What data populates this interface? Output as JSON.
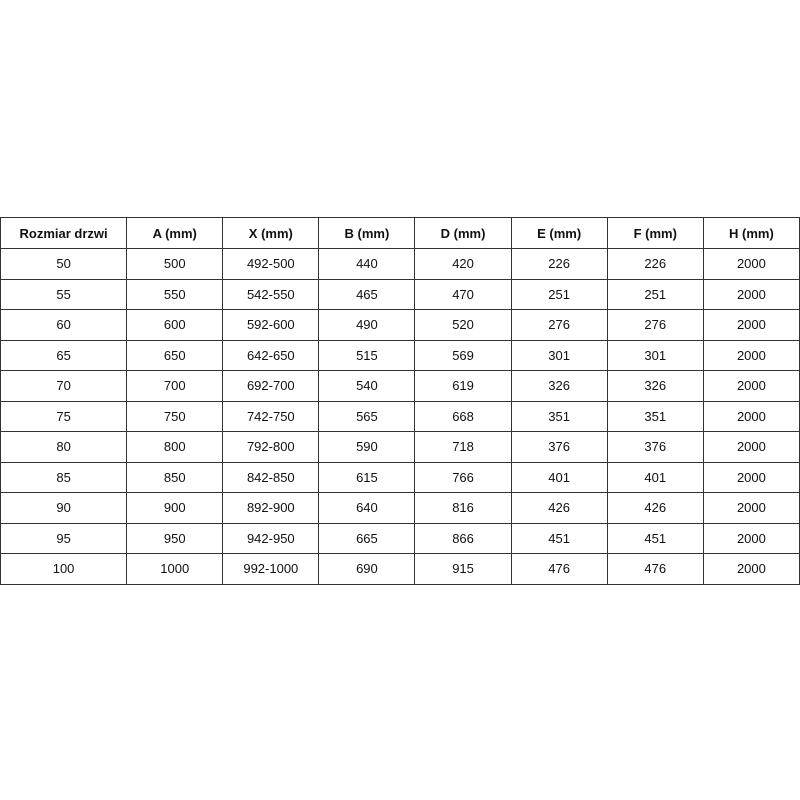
{
  "table": {
    "headers": [
      "Rozmiar drzwi",
      "A (mm)",
      "X (mm)",
      "B (mm)",
      "D (mm)",
      "E (mm)",
      "F (mm)",
      "H (mm)"
    ],
    "rows": [
      [
        "50",
        "500",
        "492-500",
        "440",
        "420",
        "226",
        "226",
        "2000"
      ],
      [
        "55",
        "550",
        "542-550",
        "465",
        "470",
        "251",
        "251",
        "2000"
      ],
      [
        "60",
        "600",
        "592-600",
        "490",
        "520",
        "276",
        "276",
        "2000"
      ],
      [
        "65",
        "650",
        "642-650",
        "515",
        "569",
        "301",
        "301",
        "2000"
      ],
      [
        "70",
        "700",
        "692-700",
        "540",
        "619",
        "326",
        "326",
        "2000"
      ],
      [
        "75",
        "750",
        "742-750",
        "565",
        "668",
        "351",
        "351",
        "2000"
      ],
      [
        "80",
        "800",
        "792-800",
        "590",
        "718",
        "376",
        "376",
        "2000"
      ],
      [
        "85",
        "850",
        "842-850",
        "615",
        "766",
        "401",
        "401",
        "2000"
      ],
      [
        "90",
        "900",
        "892-900",
        "640",
        "816",
        "426",
        "426",
        "2000"
      ],
      [
        "95",
        "950",
        "942-950",
        "665",
        "866",
        "451",
        "451",
        "2000"
      ],
      [
        "100",
        "1000",
        "992-1000",
        "690",
        "915",
        "476",
        "476",
        "2000"
      ]
    ]
  }
}
